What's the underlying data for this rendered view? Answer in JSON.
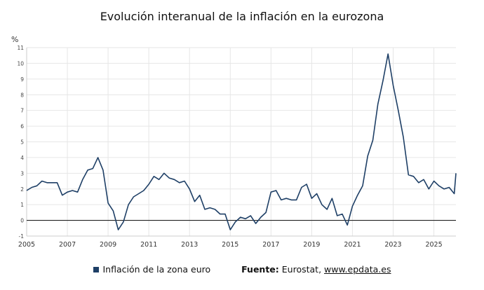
{
  "header": {
    "title": "Evolución interanual de la inflación en la eurozona",
    "unit": "%"
  },
  "legend": {
    "series_label": "Inflación de la zona euro",
    "source_label": "Fuente:",
    "source_text": "Eurostat,",
    "source_link": "www.epdata.es"
  },
  "colors": {
    "line": "#1e3f66",
    "grid": "#e6e6e6",
    "zero_line": "#222222"
  },
  "chart_data": {
    "type": "line",
    "title": "Evolución interanual de la inflación en la eurozona",
    "xlabel": "",
    "ylabel": "%",
    "xlim": [
      "2005-01",
      "2026-02"
    ],
    "ylim": [
      -1,
      11
    ],
    "yticks": [
      -1,
      0,
      1,
      2,
      3,
      4,
      5,
      6,
      7,
      8,
      9,
      10,
      11
    ],
    "xticks": [
      "2005",
      "2007",
      "2009",
      "2011",
      "2013",
      "2015",
      "2017",
      "2019",
      "2021",
      "2023",
      "2025"
    ],
    "grid": true,
    "legend_position": "bottom",
    "series": [
      {
        "name": "Inflación de la zona euro",
        "x": [
          "2005-01",
          "2005-04",
          "2005-07",
          "2005-10",
          "2006-01",
          "2006-04",
          "2006-07",
          "2006-10",
          "2007-01",
          "2007-04",
          "2007-07",
          "2007-10",
          "2008-01",
          "2008-04",
          "2008-07",
          "2008-10",
          "2009-01",
          "2009-04",
          "2009-07",
          "2009-10",
          "2010-01",
          "2010-04",
          "2010-07",
          "2010-10",
          "2011-01",
          "2011-04",
          "2011-07",
          "2011-10",
          "2012-01",
          "2012-04",
          "2012-07",
          "2012-10",
          "2013-01",
          "2013-04",
          "2013-07",
          "2013-10",
          "2014-01",
          "2014-04",
          "2014-07",
          "2014-10",
          "2015-01",
          "2015-04",
          "2015-07",
          "2015-10",
          "2016-01",
          "2016-04",
          "2016-07",
          "2016-10",
          "2017-01",
          "2017-04",
          "2017-07",
          "2017-10",
          "2018-01",
          "2018-04",
          "2018-07",
          "2018-10",
          "2019-01",
          "2019-04",
          "2019-07",
          "2019-10",
          "2020-01",
          "2020-04",
          "2020-07",
          "2020-10",
          "2021-01",
          "2021-04",
          "2021-07",
          "2021-10",
          "2022-01",
          "2022-04",
          "2022-07",
          "2022-10",
          "2023-01",
          "2023-04",
          "2023-07",
          "2023-10",
          "2024-01",
          "2024-04",
          "2024-07",
          "2024-10",
          "2025-01",
          "2025-04",
          "2025-07",
          "2025-10",
          "2026-01",
          "2026-02"
        ],
        "values": [
          1.9,
          2.1,
          2.2,
          2.5,
          2.4,
          2.4,
          2.4,
          1.6,
          1.8,
          1.9,
          1.8,
          2.6,
          3.2,
          3.3,
          4.0,
          3.2,
          1.1,
          0.6,
          -0.6,
          -0.1,
          1.0,
          1.5,
          1.7,
          1.9,
          2.3,
          2.8,
          2.6,
          3.0,
          2.7,
          2.6,
          2.4,
          2.5,
          2.0,
          1.2,
          1.6,
          0.7,
          0.8,
          0.7,
          0.4,
          0.4,
          -0.6,
          -0.1,
          0.2,
          0.1,
          0.3,
          -0.2,
          0.2,
          0.5,
          1.8,
          1.9,
          1.3,
          1.4,
          1.3,
          1.3,
          2.1,
          2.3,
          1.4,
          1.7,
          1.0,
          0.7,
          1.4,
          0.3,
          0.4,
          -0.3,
          0.9,
          1.6,
          2.2,
          4.1,
          5.1,
          7.4,
          8.9,
          10.6,
          8.6,
          7.0,
          5.3,
          2.9,
          2.8,
          2.4,
          2.6,
          2.0,
          2.5,
          2.2,
          2.0,
          2.1,
          1.7,
          3.0
        ]
      }
    ]
  }
}
